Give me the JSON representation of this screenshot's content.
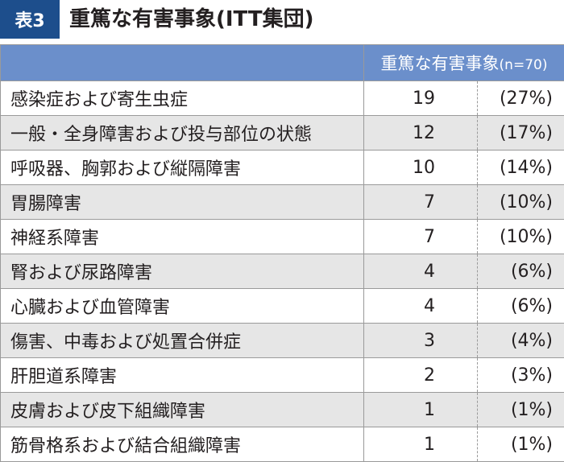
{
  "title": {
    "badge": "表3",
    "text": "重篤な有害事象(ITT集団)"
  },
  "table": {
    "header_label": "重篤な有害事象",
    "header_n": "(n=70)",
    "rows": [
      {
        "name": "感染症および寄生虫症",
        "count": "19",
        "pct": "(27%)"
      },
      {
        "name": "一般・全身障害および投与部位の状態",
        "count": "12",
        "pct": "(17%)"
      },
      {
        "name": "呼吸器、胸郭および縦隔障害",
        "count": "10",
        "pct": "(14%)"
      },
      {
        "name": "胃腸障害",
        "count": "7",
        "pct": "(10%)"
      },
      {
        "name": "神経系障害",
        "count": "7",
        "pct": "(10%)"
      },
      {
        "name": "腎および尿路障害",
        "count": "4",
        "pct": "(6%)"
      },
      {
        "name": "心臓および血管障害",
        "count": "4",
        "pct": "(6%)"
      },
      {
        "name": "傷害、中毒および処置合併症",
        "count": "3",
        "pct": "(4%)"
      },
      {
        "name": "肝胆道系障害",
        "count": "2",
        "pct": "(3%)"
      },
      {
        "name": "皮膚および皮下組織障害",
        "count": "1",
        "pct": "(1%)"
      },
      {
        "name": "筋骨格系および結合組織障害",
        "count": "1",
        "pct": "(1%)"
      }
    ]
  },
  "colors": {
    "badge": "#1d4e8c",
    "header": "#6b8fcb",
    "stripe": "#e6e6e6"
  }
}
